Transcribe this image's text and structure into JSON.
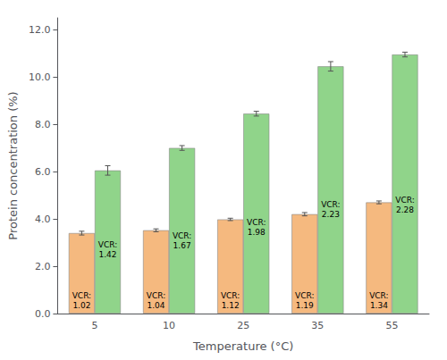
{
  "chart_data": {
    "type": "bar",
    "xlabel": "Temperature (°C)",
    "ylabel": "Protein concentration (%)",
    "categories": [
      "5",
      "10",
      "25",
      "35",
      "55"
    ],
    "series": [
      {
        "color": "#F5B97F",
        "values": [
          3.4,
          3.52,
          3.98,
          4.2,
          4.7
        ],
        "errors": [
          0.08,
          0.06,
          0.05,
          0.07,
          0.06
        ],
        "annotations": [
          "VCR:\n1.02",
          "VCR:\n1.04",
          "VCR:\n1.12",
          "VCR:\n1.19",
          "VCR:\n1.34"
        ]
      },
      {
        "color": "#90D48A",
        "values": [
          6.05,
          7.0,
          8.45,
          10.45,
          10.95
        ],
        "errors": [
          0.2,
          0.1,
          0.1,
          0.2,
          0.1
        ],
        "annotations": [
          "VCR:\n1.42",
          "VCR:\n1.67",
          "VCR:\n1.98",
          "VCR:\n2.23",
          "VCR:\n2.28"
        ]
      }
    ],
    "ylim": [
      0.0,
      12.5
    ],
    "yticks": [
      {
        "value": 0.0,
        "label": "0.0"
      },
      {
        "value": 2.0,
        "label": "2.0"
      },
      {
        "value": 4.0,
        "label": "4.0"
      },
      {
        "value": 6.0,
        "label": "6.0"
      },
      {
        "value": 8.0,
        "label": "8.0"
      },
      {
        "value": 10.0,
        "label": "10.0"
      },
      {
        "value": 12.0,
        "label": "12.0"
      }
    ],
    "grid": false
  }
}
